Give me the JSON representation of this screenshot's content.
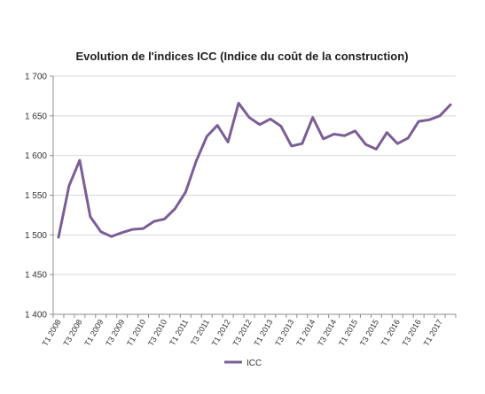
{
  "chart_data": {
    "type": "line",
    "title": "Evolution de l'indices ICC (Indice du coût de la construction)",
    "xlabel": "",
    "ylabel": "",
    "ylim": [
      1400,
      1700
    ],
    "yticks": [
      1400,
      1450,
      1500,
      1550,
      1600,
      1650,
      1700
    ],
    "ytick_labels": [
      "1 400",
      "1 450",
      "1 500",
      "1 550",
      "1 600",
      "1 650",
      "1 700"
    ],
    "grid": "horizontal",
    "legend": "bottom-center",
    "x": [
      "T1 2008",
      "T2 2008",
      "T3 2008",
      "T4 2008",
      "T1 2009",
      "T2 2009",
      "T3 2009",
      "T4 2009",
      "T1 2010",
      "T2 2010",
      "T3 2010",
      "T4 2010",
      "T1 2011",
      "T2 2011",
      "T3 2011",
      "T4 2011",
      "T1 2012",
      "T2 2012",
      "T3 2012",
      "T4 2012",
      "T1 2013",
      "T2 2013",
      "T3 2013",
      "T4 2013",
      "T1 2014",
      "T2 2014",
      "T3 2014",
      "T4 2014",
      "T1 2015",
      "T2 2015",
      "T3 2015",
      "T4 2015",
      "T1 2016",
      "T2 2016",
      "T3 2016",
      "T4 2016",
      "T1 2017",
      "T2 2017"
    ],
    "xtick_labels": [
      "T1 2008",
      "T3 2008",
      "T1 2009",
      "T3 2009",
      "T1 2010",
      "T3 2010",
      "T1 2011",
      "T3 2011",
      "T1 2012",
      "T3 2012",
      "T1 2013",
      "T3 2013",
      "T1 2014",
      "T3 2014",
      "T1 2015",
      "T3 2015",
      "T1 2016",
      "T3 2016",
      "T1 2017"
    ],
    "series": [
      {
        "name": "ICC",
        "color": "#7b5e95",
        "values": [
          1497,
          1562,
          1594,
          1523,
          1504,
          1498,
          1503,
          1507,
          1508,
          1517,
          1520,
          1533,
          1554,
          1593,
          1624,
          1638,
          1617,
          1666,
          1648,
          1639,
          1646,
          1637,
          1612,
          1615,
          1648,
          1621,
          1627,
          1625,
          1631,
          1614,
          1608,
          1629,
          1615,
          1622,
          1643,
          1645,
          1650,
          1664
        ]
      }
    ]
  }
}
